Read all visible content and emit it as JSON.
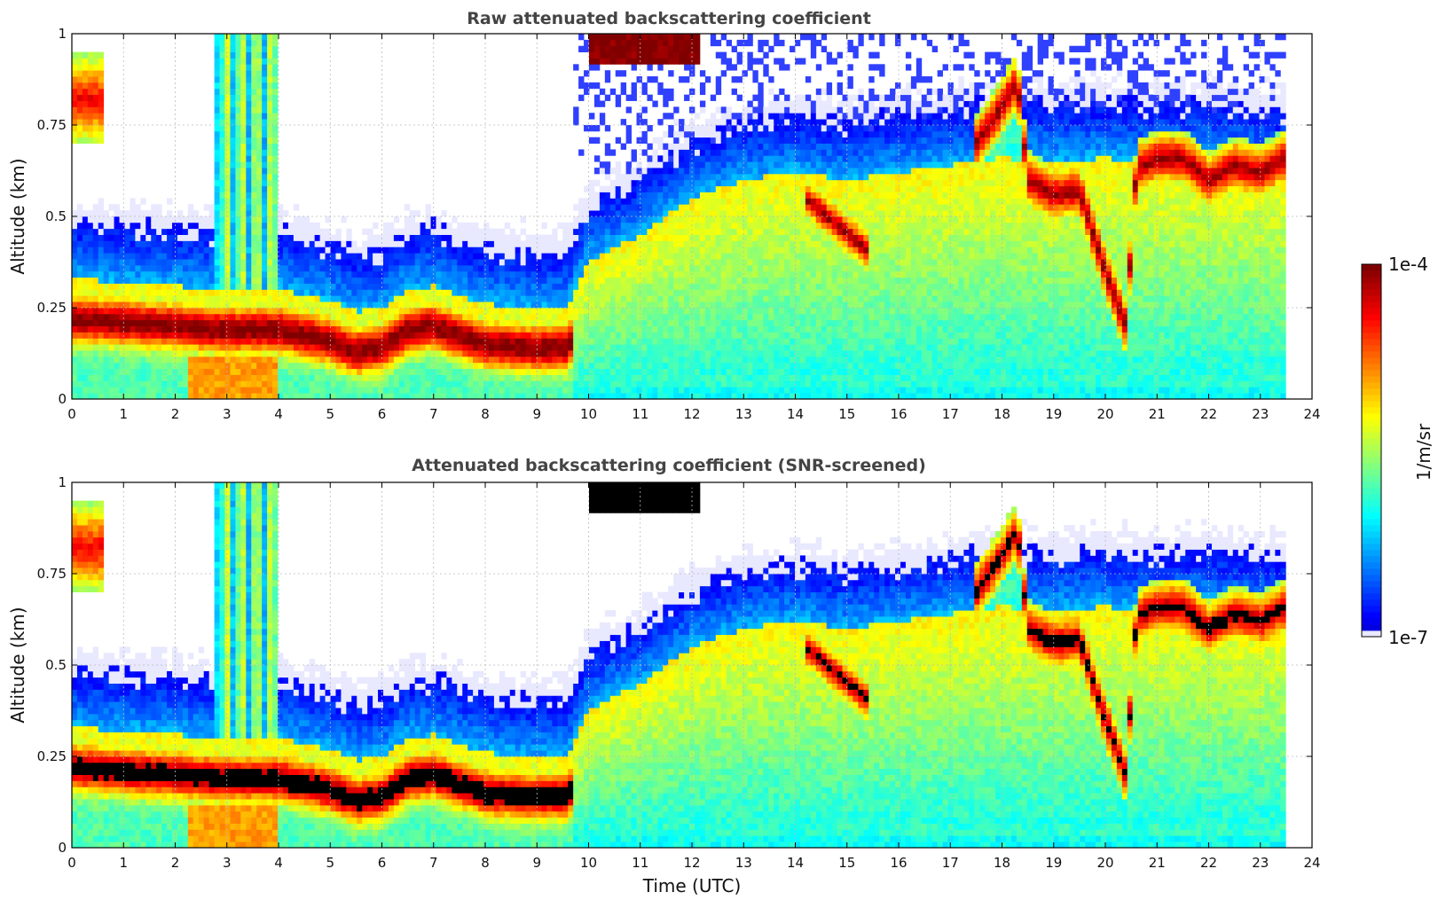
{
  "colors": {
    "jet": [
      "#000080",
      "#0000ff",
      "#0080ff",
      "#00ffff",
      "#80ff80",
      "#ffff00",
      "#ff8000",
      "#ff0000",
      "#800000"
    ],
    "cb_low": "#e8e8ff",
    "screened_sat": "#000000",
    "grid": "#bbbbbb"
  },
  "chart_data": [
    {
      "type": "heatmap",
      "title": "Raw attenuated backscattering coefficient",
      "xlabel": "",
      "ylabel": "Altitude (km)",
      "xlim": [
        0,
        24
      ],
      "ylim": [
        0,
        1
      ],
      "xticks": [
        "0",
        "1",
        "2",
        "3",
        "4",
        "5",
        "6",
        "7",
        "8",
        "9",
        "10",
        "11",
        "12",
        "13",
        "14",
        "15",
        "16",
        "17",
        "18",
        "19",
        "20",
        "21",
        "22",
        "23",
        "24"
      ],
      "yticks": [
        "0",
        "0.25",
        "0.5",
        "0.75",
        "1"
      ],
      "grid": true,
      "data_end_hour": 23.5,
      "boundary_layer_top_km": [
        [
          0,
          0.33
        ],
        [
          1,
          0.32
        ],
        [
          2,
          0.31
        ],
        [
          3,
          0.3
        ],
        [
          4,
          0.3
        ],
        [
          5,
          0.27
        ],
        [
          5.5,
          0.24
        ],
        [
          6,
          0.25
        ],
        [
          6.5,
          0.3
        ],
        [
          7,
          0.31
        ],
        [
          8,
          0.26
        ],
        [
          9,
          0.25
        ],
        [
          9.6,
          0.25
        ],
        [
          10,
          0.38
        ],
        [
          11,
          0.45
        ],
        [
          12,
          0.55
        ],
        [
          13,
          0.6
        ],
        [
          14,
          0.62
        ],
        [
          15,
          0.6
        ],
        [
          16,
          0.62
        ],
        [
          17,
          0.64
        ],
        [
          18,
          0.66
        ],
        [
          19,
          0.65
        ],
        [
          20,
          0.66
        ],
        [
          21,
          0.65
        ],
        [
          22,
          0.66
        ],
        [
          23,
          0.64
        ],
        [
          23.5,
          0.63
        ]
      ],
      "cloud_layer_km": [
        [
          17.5,
          0.7
        ],
        [
          18,
          0.8
        ],
        [
          18.3,
          0.87
        ],
        [
          18.5,
          0.6
        ],
        [
          19,
          0.56
        ],
        [
          19.5,
          0.57
        ],
        [
          20,
          0.35
        ],
        [
          20.4,
          0.2
        ],
        [
          20.6,
          0.63
        ],
        [
          21,
          0.66
        ],
        [
          21.5,
          0.66
        ],
        [
          22,
          0.6
        ],
        [
          22.5,
          0.64
        ],
        [
          23,
          0.62
        ],
        [
          23.5,
          0.66
        ]
      ]
    },
    {
      "type": "heatmap",
      "title": "Attenuated backscattering coefficient (SNR-screened)",
      "xlabel": "Time (UTC)",
      "ylabel": "Altitude (km)",
      "xlim": [
        0,
        24
      ],
      "ylim": [
        0,
        1
      ],
      "xticks": [
        "0",
        "1",
        "2",
        "3",
        "4",
        "5",
        "6",
        "7",
        "8",
        "9",
        "10",
        "11",
        "12",
        "13",
        "14",
        "15",
        "16",
        "17",
        "18",
        "19",
        "20",
        "21",
        "22",
        "23",
        "24"
      ],
      "yticks": [
        "0",
        "0.25",
        "0.5",
        "0.75",
        "1"
      ],
      "grid": true,
      "data_end_hour": 23.5
    }
  ],
  "colorbar": {
    "label": "1/m/sr",
    "max_label": "1e-4",
    "min_label": "1e-7",
    "scale": "log"
  }
}
